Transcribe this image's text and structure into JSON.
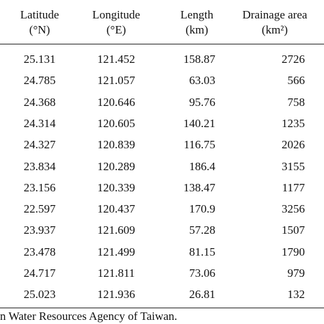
{
  "table": {
    "header": [
      [
        "Latitude",
        "(°N)"
      ],
      [
        "Longitude",
        "(°E)"
      ],
      [
        "Length",
        "(km)"
      ],
      [
        "Drainage area",
        "(km²)"
      ]
    ],
    "rows": [
      [
        "25.131",
        "121.452",
        "158.87",
        "2726"
      ],
      [
        "24.785",
        "121.057",
        "63.03",
        "566"
      ],
      [
        "24.368",
        "120.646",
        "95.76",
        "758"
      ],
      [
        "24.314",
        "120.605",
        "140.21",
        "1235"
      ],
      [
        "24.327",
        "120.839",
        "116.75",
        "2026"
      ],
      [
        "23.834",
        "120.289",
        "186.4",
        "3155"
      ],
      [
        "23.156",
        "120.339",
        "138.47",
        "1177"
      ],
      [
        "22.597",
        "120.437",
        "170.9",
        "3256"
      ],
      [
        "23.937",
        "121.609",
        "57.28",
        "1507"
      ],
      [
        "23.478",
        "121.499",
        "81.15",
        "1790"
      ],
      [
        "24.717",
        "121.811",
        "73.06",
        "979"
      ],
      [
        "25.023",
        "121.936",
        "26.81",
        "132"
      ]
    ]
  },
  "footnote": "n Water Resources Agency of Taiwan."
}
